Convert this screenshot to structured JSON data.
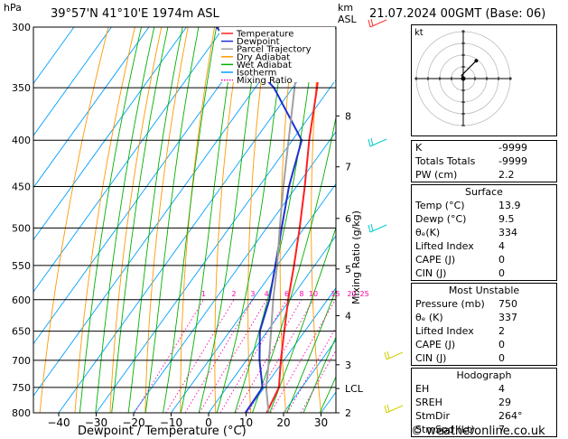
{
  "header": {
    "p_unit": "hPa",
    "location": "39°57'N  41°10'E  1974m  ASL",
    "km_unit_1": "km",
    "km_unit_2": "ASL",
    "datetime": "21.07.2024  00GMT  (Base: 06)"
  },
  "footer": {
    "x_title": "Dewpoint / Temperature (°C)",
    "copyright": "© weatheronline.co.uk",
    "mixing_ratio_title": "Mixing Ratio (g/kg)"
  },
  "colors": {
    "temperature": "#ff2020",
    "dewpoint": "#2030d0",
    "parcel": "#a0a0a0",
    "dry_adiabat": "#ff9900",
    "wet_adiabat": "#00b000",
    "isotherm": "#00a0ff",
    "mixing_ratio": "#ff00aa",
    "wind": "#00c8c8"
  },
  "chart_data": {
    "type": "skew-t",
    "xlim": [
      -45,
      35
    ],
    "pressure_levels": [
      300,
      350,
      400,
      450,
      500,
      550,
      600,
      650,
      700,
      750,
      800
    ],
    "pressure_labels": [
      "300",
      "350",
      "400",
      "450",
      "500",
      "550",
      "600",
      "650",
      "700",
      "750",
      "800"
    ],
    "x_ticks": [
      -40,
      -30,
      -20,
      -10,
      0,
      10,
      20,
      30
    ],
    "x_tick_labels": [
      "−40",
      "−30",
      "−20",
      "−10",
      "0",
      "10",
      "20",
      "30"
    ],
    "km_ticks": [
      {
        "label": "8",
        "p": 376
      },
      {
        "label": "7",
        "p": 428
      },
      {
        "label": "6",
        "p": 488
      },
      {
        "label": "5",
        "p": 555
      },
      {
        "label": "4",
        "p": 625
      },
      {
        "label": "3",
        "p": 708
      },
      {
        "label": "LCL",
        "p": 752
      },
      {
        "label": "2",
        "p": 800
      }
    ],
    "mixing_ratio_labels": [
      "1",
      "2",
      "3",
      "4",
      "6",
      "8",
      "10",
      "15",
      "20",
      "25"
    ],
    "mixing_ratio_values": [
      1,
      2,
      3,
      4,
      6,
      8,
      10,
      15,
      20,
      25
    ],
    "legend": [
      {
        "name": "Temperature",
        "style": "solid",
        "color": "#ff2020"
      },
      {
        "name": "Dewpoint",
        "style": "solid",
        "color": "#2030d0"
      },
      {
        "name": "Parcel Trajectory",
        "style": "solid",
        "color": "#a0a0a0"
      },
      {
        "name": "Dry Adiabat",
        "style": "solid",
        "color": "#ff9900"
      },
      {
        "name": "Wet Adiabat",
        "style": "solid",
        "color": "#00b000"
      },
      {
        "name": "Isotherm",
        "style": "solid",
        "color": "#00a0ff"
      },
      {
        "name": "Mixing Ratio",
        "style": "dotted",
        "color": "#ff00aa"
      }
    ],
    "series": [
      {
        "name": "Temperature",
        "points": [
          [
            800,
            15.5
          ],
          [
            750,
            13.9
          ],
          [
            700,
            9.2
          ],
          [
            650,
            4.5
          ],
          [
            600,
            -0.5
          ],
          [
            550,
            -5.5
          ],
          [
            500,
            -11.2
          ],
          [
            450,
            -17.8
          ],
          [
            400,
            -25.5
          ],
          [
            350,
            -33.5
          ],
          [
            300,
            -43.5
          ]
        ]
      },
      {
        "name": "Dewpoint",
        "points": [
          [
            800,
            9.8
          ],
          [
            750,
            9.5
          ],
          [
            700,
            3.5
          ],
          [
            650,
            -2.0
          ],
          [
            600,
            -5.5
          ],
          [
            550,
            -10.5
          ],
          [
            500,
            -16.0
          ],
          [
            450,
            -22.0
          ],
          [
            400,
            -27.5
          ],
          [
            350,
            -45.0
          ],
          [
            300,
            -72.0
          ]
        ]
      },
      {
        "name": "Parcel Trajectory",
        "points": [
          [
            800,
            16.0
          ],
          [
            750,
            10.5
          ],
          [
            700,
            6.0
          ],
          [
            650,
            1.0
          ],
          [
            600,
            -4.5
          ],
          [
            550,
            -10.0
          ],
          [
            500,
            -16.5
          ],
          [
            450,
            -23.5
          ],
          [
            400,
            -31.0
          ],
          [
            350,
            -39.5
          ],
          [
            300,
            -49.0
          ]
        ]
      }
    ]
  },
  "hodograph": {
    "label": "kt",
    "points": [
      [
        0,
        0
      ],
      [
        -1,
        2
      ],
      [
        2,
        5
      ],
      [
        8,
        11
      ]
    ]
  },
  "indices": {
    "rows": [
      {
        "label": "K",
        "value": "-9999"
      },
      {
        "label": "Totals Totals",
        "value": "-9999"
      },
      {
        "label": "PW (cm)",
        "value": "2.2"
      }
    ]
  },
  "surface": {
    "title": "Surface",
    "rows": [
      {
        "label": "Temp (°C)",
        "value": "13.9"
      },
      {
        "label": "Dewp (°C)",
        "value": "9.5"
      },
      {
        "label": "θₑ(K)",
        "value": "334"
      },
      {
        "label": "Lifted Index",
        "value": "4"
      },
      {
        "label": "CAPE (J)",
        "value": "0"
      },
      {
        "label": "CIN (J)",
        "value": "0"
      }
    ]
  },
  "most_unstable": {
    "title": "Most Unstable",
    "rows": [
      {
        "label": "Pressure (mb)",
        "value": "750"
      },
      {
        "label": "θₑ (K)",
        "value": "337"
      },
      {
        "label": "Lifted Index",
        "value": "2"
      },
      {
        "label": "CAPE (J)",
        "value": "0"
      },
      {
        "label": "CIN (J)",
        "value": "0"
      }
    ]
  },
  "hodograph_table": {
    "title": "Hodograph",
    "rows": [
      {
        "label": "EH",
        "value": "4"
      },
      {
        "label": "SREH",
        "value": "29"
      },
      {
        "label": "StmDir",
        "value": "264°"
      },
      {
        "label": "StmSpd (kt)",
        "value": "7"
      }
    ]
  }
}
